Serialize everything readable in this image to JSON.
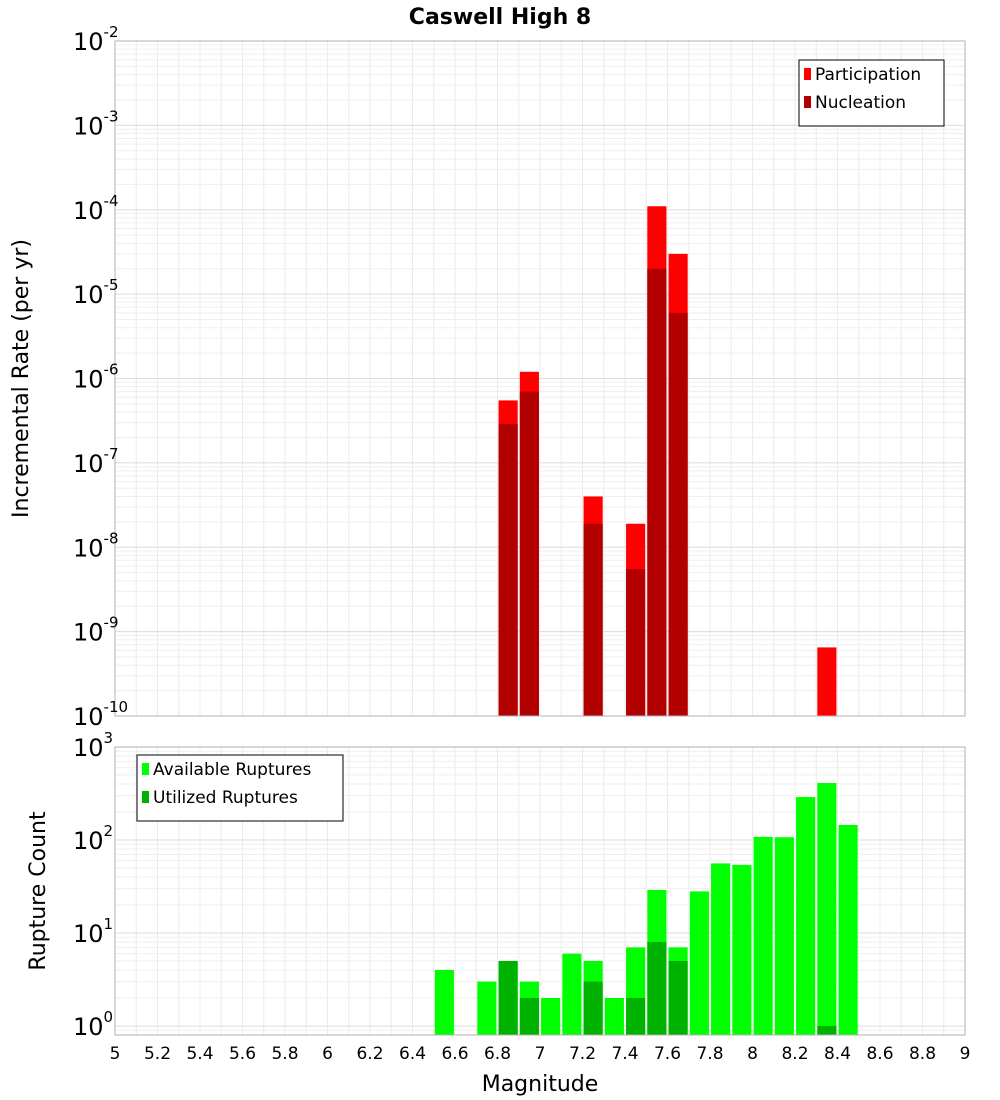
{
  "chart_data": [
    {
      "type": "bar",
      "title": "Caswell High 8",
      "xlabel": "",
      "ylabel": "Incremental Rate (per yr)",
      "yscale": "log",
      "xlim": [
        5,
        9
      ],
      "ylim": [
        1e-10,
        0.01
      ],
      "y_ticks": [
        {
          "base": "10",
          "exp": "-10"
        },
        {
          "base": "10",
          "exp": "-9"
        },
        {
          "base": "10",
          "exp": "-8"
        },
        {
          "base": "10",
          "exp": "-7"
        },
        {
          "base": "10",
          "exp": "-6"
        },
        {
          "base": "10",
          "exp": "-5"
        },
        {
          "base": "10",
          "exp": "-4"
        },
        {
          "base": "10",
          "exp": "-3"
        },
        {
          "base": "10",
          "exp": "-2"
        }
      ],
      "grid": true,
      "legend_position": "top-right",
      "bar_width": 0.09,
      "series": [
        {
          "name": "Participation",
          "color": "#ff0000",
          "points": [
            {
              "x": 6.85,
              "y": 5.5e-07
            },
            {
              "x": 6.95,
              "y": 1.2e-06
            },
            {
              "x": 7.25,
              "y": 4e-08
            },
            {
              "x": 7.45,
              "y": 1.9e-08
            },
            {
              "x": 7.55,
              "y": 0.00011
            },
            {
              "x": 7.65,
              "y": 3e-05
            },
            {
              "x": 8.35,
              "y": 6.5e-10
            }
          ]
        },
        {
          "name": "Nucleation",
          "color": "#b20000",
          "points": [
            {
              "x": 6.85,
              "y": 2.9e-07
            },
            {
              "x": 6.95,
              "y": 7e-07
            },
            {
              "x": 7.25,
              "y": 1.9e-08
            },
            {
              "x": 7.45,
              "y": 5.5e-09
            },
            {
              "x": 7.55,
              "y": 2e-05
            },
            {
              "x": 7.65,
              "y": 6e-06
            }
          ]
        }
      ]
    },
    {
      "type": "bar",
      "title": "",
      "xlabel": "Magnitude",
      "ylabel": "Rupture Count",
      "yscale": "log",
      "xlim": [
        5,
        9
      ],
      "ylim": [
        0.8,
        1000
      ],
      "x_ticks": [
        "5",
        "5.2",
        "5.4",
        "5.6",
        "5.8",
        "6",
        "6.2",
        "6.4",
        "6.6",
        "6.8",
        "7",
        "7.2",
        "7.4",
        "7.6",
        "7.8",
        "8",
        "8.2",
        "8.4",
        "8.6",
        "8.8",
        "9"
      ],
      "y_ticks": [
        {
          "base": "10",
          "exp": "0"
        },
        {
          "base": "10",
          "exp": "1"
        },
        {
          "base": "10",
          "exp": "2"
        },
        {
          "base": "10",
          "exp": "3"
        }
      ],
      "grid": true,
      "legend_position": "top-left",
      "bar_width": 0.09,
      "series": [
        {
          "name": "Available Ruptures",
          "color": "#00ff00",
          "points": [
            {
              "x": 6.55,
              "y": 4
            },
            {
              "x": 6.75,
              "y": 3
            },
            {
              "x": 6.85,
              "y": 5
            },
            {
              "x": 6.95,
              "y": 3
            },
            {
              "x": 7.05,
              "y": 2
            },
            {
              "x": 7.15,
              "y": 6
            },
            {
              "x": 7.25,
              "y": 5
            },
            {
              "x": 7.35,
              "y": 2
            },
            {
              "x": 7.45,
              "y": 7
            },
            {
              "x": 7.55,
              "y": 29
            },
            {
              "x": 7.65,
              "y": 7
            },
            {
              "x": 7.75,
              "y": 28
            },
            {
              "x": 7.85,
              "y": 56
            },
            {
              "x": 7.95,
              "y": 54
            },
            {
              "x": 8.05,
              "y": 108
            },
            {
              "x": 8.15,
              "y": 107
            },
            {
              "x": 8.25,
              "y": 290
            },
            {
              "x": 8.35,
              "y": 410
            },
            {
              "x": 8.45,
              "y": 145
            }
          ]
        },
        {
          "name": "Utilized Ruptures",
          "color": "#00b200",
          "points": [
            {
              "x": 6.85,
              "y": 5
            },
            {
              "x": 6.95,
              "y": 2
            },
            {
              "x": 7.25,
              "y": 3
            },
            {
              "x": 7.45,
              "y": 2
            },
            {
              "x": 7.55,
              "y": 8
            },
            {
              "x": 7.65,
              "y": 5
            },
            {
              "x": 8.35,
              "y": 1
            }
          ]
        }
      ]
    }
  ]
}
